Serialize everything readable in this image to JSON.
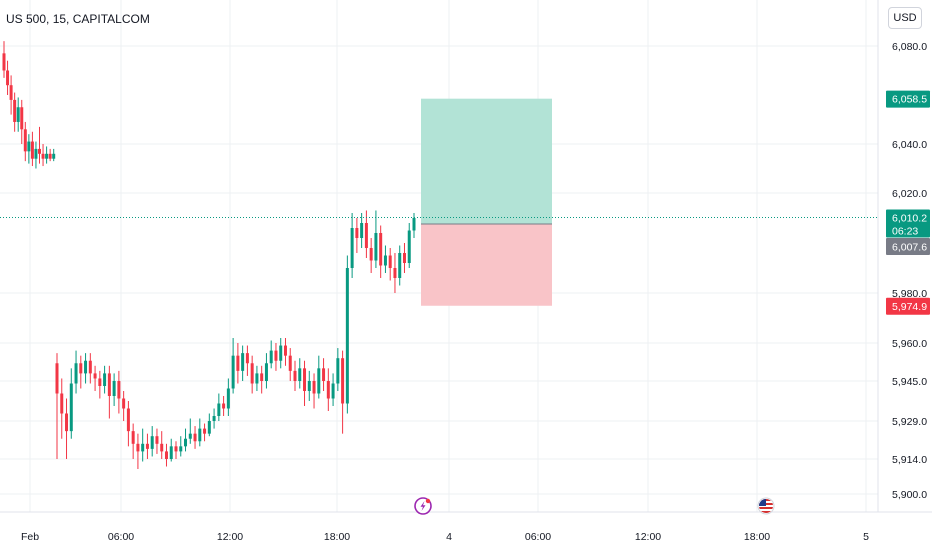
{
  "header": {
    "symbol_title": "US 500, 15, CAPITALCOM",
    "currency_label": "USD"
  },
  "colors": {
    "up": "#089981",
    "down": "#f23645",
    "grid": "#eef0f3",
    "profit_zone": "#b2e3d6",
    "loss_zone": "#f9c4c8",
    "current_tag": "#089981",
    "entry_tag": "#787b86",
    "target_tag": "#089981",
    "stop_tag": "#f23645"
  },
  "chart_data": {
    "type": "candlestick",
    "y_ticks": [
      {
        "value": 6080,
        "label": "6,080.0"
      },
      {
        "value": 6040,
        "label": "6,040.0"
      },
      {
        "value": 6020,
        "label": "6,020.0"
      },
      {
        "value": 5980,
        "label": "5,980.0"
      },
      {
        "value": 5960,
        "label": "5,960.0"
      },
      {
        "value": 5945,
        "label": "5,945.0"
      },
      {
        "value": 5929,
        "label": "5,929.0"
      },
      {
        "value": 5914,
        "label": "5,914.0"
      },
      {
        "value": 5900,
        "label": "5,900.0"
      }
    ],
    "x_ticks": [
      "Feb",
      "06:00",
      "12:00",
      "18:00",
      "4",
      "06:00",
      "12:00",
      "18:00",
      "5"
    ],
    "price_tags": {
      "target": {
        "value": 6058.5,
        "label": "6,058.5"
      },
      "current": {
        "value": 6010.2,
        "label": "6,010.2",
        "countdown": "06:23"
      },
      "entry": {
        "value": 6007.6,
        "label": "6,007.6"
      },
      "stop": {
        "value": 5974.9,
        "label": "5,974.9"
      }
    },
    "position_tool": {
      "entry": 6007.6,
      "target": 6058.5,
      "stop": 5974.9
    },
    "candles_session_1": [
      [
        6077,
        6070,
        6082,
        6067
      ],
      [
        6070,
        6064,
        6074,
        6060
      ],
      [
        6064,
        6058,
        6068,
        6052
      ],
      [
        6058,
        6049,
        6061,
        6045
      ],
      [
        6049,
        6055,
        6059,
        6045
      ],
      [
        6055,
        6046,
        6058,
        6040
      ],
      [
        6046,
        6037,
        6049,
        6033
      ],
      [
        6037,
        6041,
        6044,
        6032
      ],
      [
        6041,
        6034,
        6045,
        6031
      ],
      [
        6034,
        6038,
        6041,
        6030
      ],
      [
        6038,
        6036,
        6047,
        6032
      ],
      [
        6036,
        6034,
        6040,
        6031
      ],
      [
        6034,
        6036,
        6039,
        6032
      ],
      [
        6036,
        6034,
        6038,
        6033
      ],
      [
        6034,
        6036,
        6038,
        6033
      ]
    ],
    "candles_session_2": [
      [
        5952,
        5940,
        5956,
        5914
      ],
      [
        5940,
        5932,
        5946,
        5922
      ],
      [
        5932,
        5925,
        5938,
        5914
      ],
      [
        5925,
        5944,
        5950,
        5922
      ],
      [
        5944,
        5952,
        5957,
        5940
      ],
      [
        5952,
        5948,
        5955,
        5942
      ],
      [
        5948,
        5953,
        5956,
        5944
      ],
      [
        5953,
        5948,
        5956,
        5944
      ],
      [
        5948,
        5946,
        5951,
        5941
      ],
      [
        5946,
        5943,
        5949,
        5938
      ],
      [
        5943,
        5948,
        5951,
        5940
      ],
      [
        5948,
        5939,
        5951,
        5930
      ],
      [
        5939,
        5945,
        5948,
        5935
      ],
      [
        5945,
        5938,
        5949,
        5932
      ],
      [
        5938,
        5934,
        5941,
        5929
      ],
      [
        5934,
        5925,
        5937,
        5919
      ],
      [
        5925,
        5920,
        5928,
        5914
      ],
      [
        5920,
        5917,
        5924,
        5910
      ],
      [
        5917,
        5920,
        5926,
        5913
      ],
      [
        5920,
        5918,
        5924,
        5914
      ],
      [
        5918,
        5923,
        5927,
        5915
      ],
      [
        5923,
        5920,
        5926,
        5916
      ],
      [
        5920,
        5917,
        5925,
        5914
      ],
      [
        5917,
        5914,
        5920,
        5911
      ],
      [
        5914,
        5919,
        5922,
        5913
      ],
      [
        5919,
        5917,
        5921,
        5914
      ],
      [
        5917,
        5919,
        5923,
        5915
      ],
      [
        5919,
        5922,
        5926,
        5917
      ],
      [
        5922,
        5924,
        5930,
        5920
      ],
      [
        5924,
        5921,
        5927,
        5918
      ],
      [
        5921,
        5926,
        5930,
        5919
      ],
      [
        5926,
        5924,
        5928,
        5921
      ],
      [
        5924,
        5929,
        5932,
        5923
      ],
      [
        5929,
        5931,
        5934,
        5926
      ],
      [
        5931,
        5936,
        5940,
        5929
      ],
      [
        5936,
        5934,
        5939,
        5931
      ],
      [
        5934,
        5942,
        5946,
        5931
      ],
      [
        5942,
        5955,
        5962,
        5940
      ],
      [
        5955,
        5949,
        5960,
        5944
      ],
      [
        5949,
        5956,
        5959,
        5945
      ],
      [
        5956,
        5952,
        5959,
        5947
      ],
      [
        5952,
        5944,
        5955,
        5940
      ],
      [
        5944,
        5948,
        5951,
        5941
      ],
      [
        5948,
        5945,
        5951,
        5940
      ],
      [
        5945,
        5952,
        5956,
        5942
      ],
      [
        5952,
        5957,
        5961,
        5950
      ],
      [
        5957,
        5953,
        5960,
        5949
      ],
      [
        5953,
        5959,
        5962,
        5950
      ],
      [
        5959,
        5955,
        5962,
        5951
      ],
      [
        5955,
        5949,
        5958,
        5945
      ],
      [
        5949,
        5945,
        5953,
        5941
      ],
      [
        5945,
        5950,
        5954,
        5942
      ],
      [
        5950,
        5941,
        5953,
        5935
      ],
      [
        5941,
        5945,
        5949,
        5937
      ],
      [
        5945,
        5940,
        5948,
        5934
      ],
      [
        5940,
        5950,
        5955,
        5938
      ],
      [
        5950,
        5945,
        5954,
        5941
      ],
      [
        5945,
        5938,
        5950,
        5933
      ],
      [
        5938,
        5944,
        5948,
        5935
      ],
      [
        5944,
        5954,
        5958,
        5941
      ],
      [
        5954,
        5936,
        5957,
        5924
      ],
      [
        5936,
        5990,
        5995,
        5932
      ],
      [
        5990,
        6006,
        6012,
        5986
      ],
      [
        6006,
        6002,
        6010,
        5996
      ],
      [
        6002,
        6008,
        6012,
        5998
      ],
      [
        6008,
        5998,
        6013,
        5994
      ],
      [
        5998,
        5993,
        6002,
        5988
      ],
      [
        5993,
        6004,
        6013,
        5990
      ],
      [
        6004,
        5991,
        6007,
        5986
      ],
      [
        5991,
        5995,
        5999,
        5988
      ],
      [
        5995,
        5990,
        5998,
        5985
      ],
      [
        5990,
        5986,
        5996,
        5980
      ],
      [
        5986,
        5996,
        5999,
        5983
      ],
      [
        5996,
        5992,
        6000,
        5988
      ],
      [
        5992,
        6005,
        6008,
        5990
      ],
      [
        6005,
        6010,
        6012,
        6002
      ]
    ]
  }
}
